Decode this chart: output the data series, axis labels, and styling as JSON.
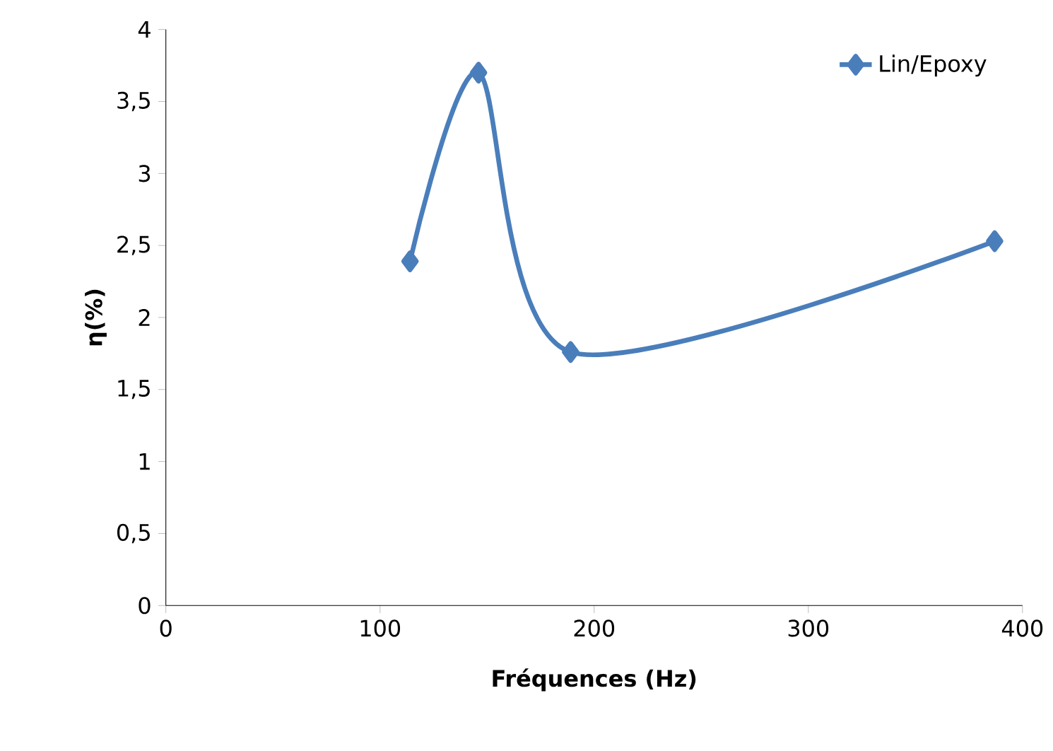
{
  "chart_data": {
    "type": "line",
    "xlabel": "Fréquences (Hz)",
    "ylabel": "η(%)",
    "x": [
      114,
      146,
      189,
      387
    ],
    "series": [
      {
        "name": "Lin/Epoxy",
        "color": "#4a7ebb",
        "values": [
          2.39,
          3.7,
          1.76,
          2.53
        ]
      }
    ],
    "xlim": [
      0,
      400
    ],
    "xticks": [
      0,
      100,
      200,
      300,
      400
    ],
    "ylim": [
      0,
      4
    ],
    "yticks": [
      0,
      {
        "value": 0.5,
        "label": "0,5"
      },
      1,
      {
        "value": 1.5,
        "label": "1,5"
      },
      2,
      {
        "value": 2.5,
        "label": "2,5"
      },
      3,
      {
        "value": 3.5,
        "label": "3,5"
      },
      4
    ],
    "grid": false,
    "legend": "top right",
    "marker": "diamond",
    "line_style": "solid"
  }
}
